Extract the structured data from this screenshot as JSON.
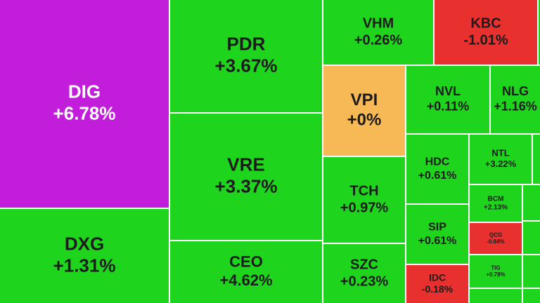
{
  "chart_data": {
    "type": "treemap",
    "categories": [
      "DIG",
      "DXG",
      "PDR",
      "VRE",
      "CEO",
      "VHM",
      "KBC",
      "VPI",
      "TCH",
      "SZC",
      "NVL",
      "NLG",
      "HDC",
      "NTL",
      "SIP",
      "IDC",
      "BCM",
      "QCG",
      "TIG"
    ],
    "values": [
      6.78,
      1.31,
      3.67,
      3.37,
      4.62,
      0.26,
      -1.01,
      0,
      0.97,
      0.23,
      0.11,
      1.16,
      0.61,
      3.22,
      0.61,
      -0.18,
      2.13,
      -0.84,
      0.78
    ],
    "value_labels": [
      "+6.78%",
      "+1.31%",
      "+3.67%",
      "+3.37%",
      "+4.62%",
      "+0.26%",
      "-1.01%",
      "+0%",
      "+0.97%",
      "+0.23%",
      "+0.11%",
      "+1.16%",
      "+0.61%",
      "+3.22%",
      "+0.61%",
      "-0.18%",
      "+2.13%",
      "-0.84%",
      "+0.78%"
    ],
    "colors": [
      "#c31ddc",
      "#1ed41c",
      "#1ed41c",
      "#1ed41c",
      "#1ed41c",
      "#1ed41c",
      "#e8312f",
      "#f7b955",
      "#1ed41c",
      "#1ed41c",
      "#1ed41c",
      "#1ed41c",
      "#1ed41c",
      "#1ed41c",
      "#1ed41c",
      "#e8312f",
      "#1ed41c",
      "#e8312f",
      "#1ed41c"
    ]
  }
}
